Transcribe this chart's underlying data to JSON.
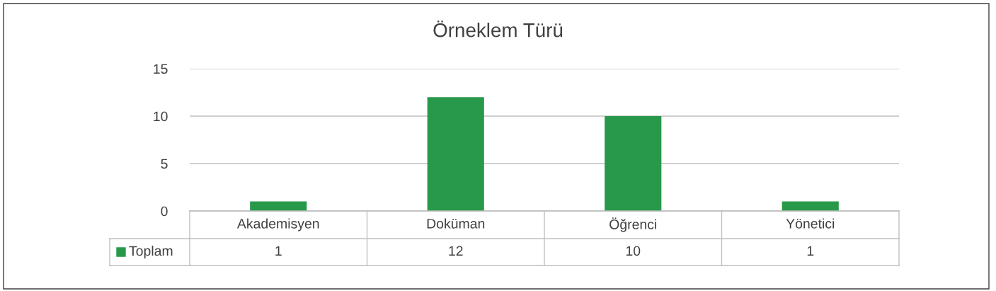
{
  "chart_data": {
    "type": "bar",
    "title": "Örneklem Türü",
    "categories": [
      "Akademisyen",
      "Doküman",
      "Öğrenci",
      "Yönetici"
    ],
    "series": [
      {
        "name": "Toplam",
        "color": "#28994a",
        "values": [
          1,
          12,
          10,
          1
        ]
      }
    ],
    "ylim": [
      0,
      15
    ],
    "yticks": [
      0,
      5,
      10,
      15
    ],
    "grid": "y",
    "data_labels": true,
    "legend": "bottom"
  }
}
